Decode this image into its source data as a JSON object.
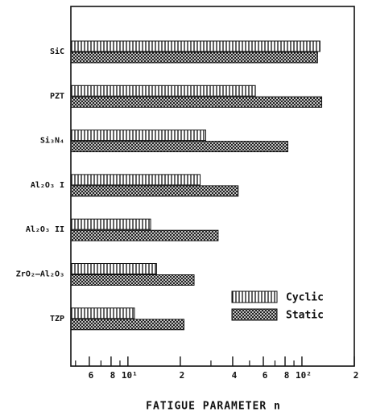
{
  "chart_data": {
    "type": "barh",
    "xlabel": "FATIGUE PARAMETER  n",
    "xscale": "log",
    "categories": [
      "SiC",
      "PZT",
      "Si₃N₄",
      "Al₂O₃ I",
      "Al₂O₃ II",
      "ZrO₂–Al₂O₃",
      "TZP"
    ],
    "series": [
      {
        "name": "Cyclic",
        "color": "#111111",
        "pattern": "vertical",
        "values": [
          127,
          54,
          28,
          26,
          13.5,
          14.6,
          10.9
        ]
      },
      {
        "name": "Static",
        "color": "#111111",
        "pattern": "crosshatch",
        "values": [
          123,
          130,
          83,
          43,
          33,
          24,
          21
        ]
      }
    ],
    "xlim": [
      4.7,
      200
    ],
    "xticks": [
      6,
      8,
      {
        "value": 10,
        "label": "10¹"
      },
      {
        "value": 20,
        "label": "2"
      },
      {
        "value": 40,
        "label": "4"
      },
      {
        "value": 60,
        "label": "6"
      },
      {
        "value": 80,
        "label": "8"
      },
      {
        "value": 100,
        "label": "10²"
      },
      {
        "value": 200,
        "label": "2"
      }
    ],
    "xticks_minor": [
      5,
      7,
      9,
      30,
      50,
      70,
      90
    ],
    "legend": "lower right"
  }
}
